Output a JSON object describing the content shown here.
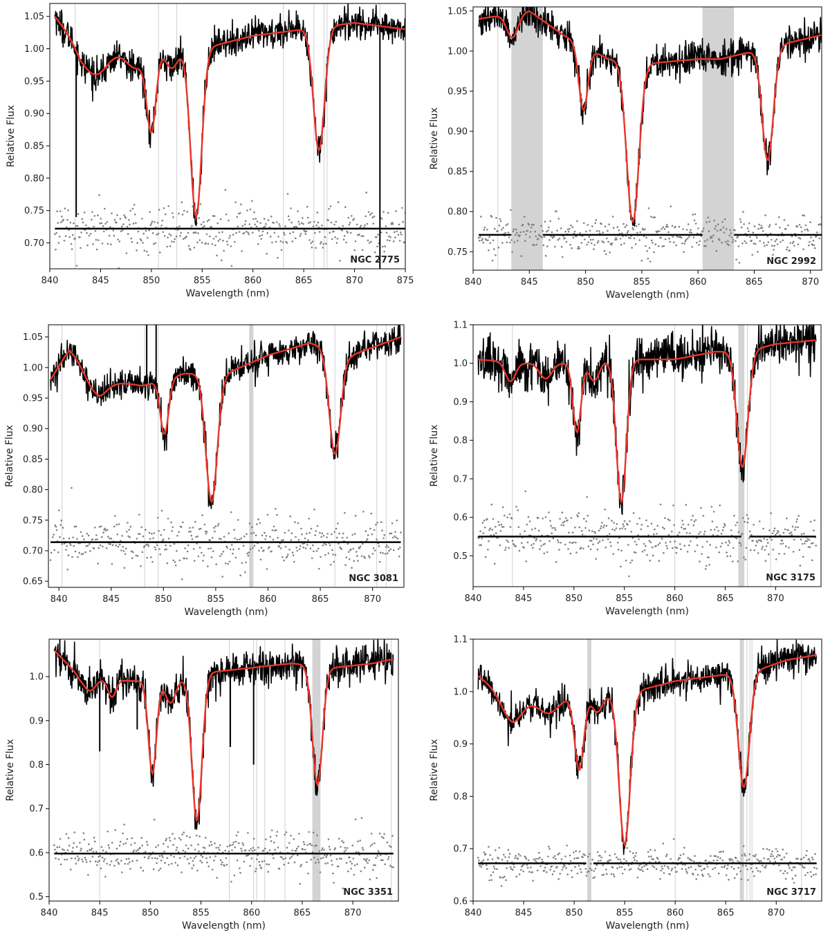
{
  "figure": {
    "ylabel": "Relative Flux",
    "xlabel": "Wavelength (nm)",
    "colors": {
      "observed": "#000000",
      "model": "#e8352a",
      "residuals": "#808080",
      "mask": "#d3d3d3",
      "baseline": "#000000"
    }
  },
  "chart_data": [
    {
      "type": "line",
      "name": "NGC 2775",
      "xlim": [
        840,
        875
      ],
      "ylim": [
        0.66,
        1.07
      ],
      "xticks": [
        840,
        845,
        850,
        855,
        860,
        865,
        870,
        875
      ],
      "yticks": [
        0.7,
        0.75,
        0.8,
        0.85,
        0.9,
        0.95,
        1.0,
        1.05
      ],
      "ytick_labels": [
        "0.70",
        "0.75",
        "0.80",
        "0.85",
        "0.90",
        "0.95",
        "1.00",
        "1.05"
      ],
      "xrange": [
        840.5,
        875
      ],
      "continuum": [
        [
          840.5,
          1.05
        ],
        [
          843,
          1.0
        ],
        [
          850,
          1.0
        ],
        [
          855,
          1.0
        ],
        [
          860,
          1.02
        ],
        [
          865,
          1.03
        ],
        [
          870,
          1.04
        ],
        [
          875,
          1.03
        ]
      ],
      "lines": [
        [
          850.0,
          0.12,
          0.45
        ],
        [
          854.4,
          0.26,
          0.55
        ],
        [
          866.5,
          0.19,
          0.55
        ],
        [
          844.5,
          0.04,
          1.2
        ],
        [
          848.5,
          0.03,
          1.0
        ],
        [
          852.0,
          0.03,
          0.6
        ]
      ],
      "noise": 0.012,
      "residual_level": 0.722,
      "residual_scatter": 0.02,
      "gaps": [],
      "masks": [],
      "grey_lines": [
        842.5,
        850.7,
        852.5,
        863.0,
        866.0,
        867.0,
        867.3,
        872.5
      ],
      "spikes": [
        [
          842.6,
          0.74
        ],
        [
          872.5,
          0.66
        ]
      ]
    },
    {
      "type": "line",
      "name": "NGC 2992",
      "xlim": [
        840,
        871
      ],
      "ylim": [
        0.727,
        1.055
      ],
      "xticks": [
        840,
        845,
        850,
        855,
        860,
        865,
        870
      ],
      "yticks": [
        0.75,
        0.8,
        0.85,
        0.9,
        0.95,
        1.0,
        1.05
      ],
      "ytick_labels": [
        "0.75",
        "0.80",
        "0.85",
        "0.90",
        "0.95",
        "1.00",
        "1.05"
      ],
      "xrange": [
        840.5,
        871
      ],
      "continuum": [
        [
          840.5,
          1.04
        ],
        [
          845,
          1.05
        ],
        [
          848,
          1.02
        ],
        [
          852,
          0.99
        ],
        [
          856,
          0.985
        ],
        [
          860,
          0.99
        ],
        [
          862,
          0.99
        ],
        [
          865,
          1.0
        ],
        [
          868,
          1.01
        ],
        [
          871,
          1.02
        ]
      ],
      "lines": [
        [
          849.8,
          0.08,
          0.4
        ],
        [
          854.2,
          0.2,
          0.55
        ],
        [
          866.2,
          0.14,
          0.5
        ],
        [
          843.5,
          0.03,
          0.5
        ]
      ],
      "noise": 0.01,
      "residual_level": 0.771,
      "residual_scatter": 0.012,
      "gaps": [
        [
          843.4,
          846.2
        ],
        [
          860.4,
          863.2
        ]
      ],
      "masks": [
        [
          843.4,
          846.2
        ],
        [
          860.4,
          863.2
        ]
      ],
      "grey_lines": [
        842.2
      ],
      "spikes": []
    },
    {
      "type": "line",
      "name": "NGC 3081",
      "xlim": [
        839,
        873
      ],
      "ylim": [
        0.64,
        1.07
      ],
      "xticks": [
        840,
        845,
        850,
        855,
        860,
        865,
        870
      ],
      "yticks": [
        0.65,
        0.7,
        0.75,
        0.8,
        0.85,
        0.9,
        0.95,
        1.0,
        1.05
      ],
      "ytick_labels": [
        "0.65",
        "0.70",
        "0.75",
        "0.80",
        "0.85",
        "0.90",
        "0.95",
        "1.00",
        "1.05"
      ],
      "xrange": [
        839.2,
        872.7
      ],
      "continuum": [
        [
          839.2,
          0.98
        ],
        [
          841,
          1.03
        ],
        [
          844,
          0.98
        ],
        [
          848,
          0.97
        ],
        [
          852,
          0.99
        ],
        [
          856,
          0.99
        ],
        [
          860,
          1.02
        ],
        [
          864,
          1.04
        ],
        [
          868,
          1.02
        ],
        [
          872.7,
          1.05
        ]
      ],
      "lines": [
        [
          850.1,
          0.09,
          0.4
        ],
        [
          854.6,
          0.21,
          0.55
        ],
        [
          866.4,
          0.17,
          0.55
        ],
        [
          843.5,
          0.03,
          1.0
        ]
      ],
      "noise": 0.012,
      "residual_level": 0.714,
      "residual_scatter": 0.02,
      "gaps": [],
      "masks": [
        [
          858.2,
          858.6
        ]
      ],
      "grey_lines": [
        840.3,
        848.2,
        849.5,
        858.3,
        866.4,
        870.4,
        871.3
      ],
      "spikes": [
        [
          849.3,
          1.07
        ],
        [
          848.4,
          1.07
        ]
      ]
    },
    {
      "type": "line",
      "name": "NGC 3175",
      "xlim": [
        840,
        874.5
      ],
      "ylim": [
        0.42,
        1.1
      ],
      "xticks": [
        840,
        845,
        850,
        855,
        860,
        865,
        870
      ],
      "yticks": [
        0.5,
        0.6,
        0.7,
        0.8,
        0.9,
        1.0,
        1.1
      ],
      "ytick_labels": [
        "0.5",
        "0.6",
        "0.7",
        "0.8",
        "0.9",
        "1.0",
        "1.1"
      ],
      "xrange": [
        840.5,
        874
      ],
      "continuum": [
        [
          840.5,
          1.01
        ],
        [
          845,
          1.0
        ],
        [
          850,
          1.0
        ],
        [
          855,
          1.01
        ],
        [
          860,
          1.01
        ],
        [
          864,
          1.03
        ],
        [
          867,
          1.03
        ],
        [
          870,
          1.05
        ],
        [
          874,
          1.06
        ]
      ],
      "lines": [
        [
          850.3,
          0.18,
          0.4
        ],
        [
          854.7,
          0.37,
          0.5
        ],
        [
          866.7,
          0.3,
          0.55
        ],
        [
          843.7,
          0.05,
          0.5
        ],
        [
          847.2,
          0.04,
          0.6
        ],
        [
          852.0,
          0.05,
          0.5
        ]
      ],
      "noise": 0.03,
      "residual_level": 0.55,
      "residual_scatter": 0.035,
      "gaps": [
        [
          866.6,
          867.4
        ]
      ],
      "masks": [
        [
          866.3,
          866.9
        ]
      ],
      "grey_lines": [
        843.9,
        860.0,
        867.2,
        869.5
      ],
      "spikes": []
    },
    {
      "type": "line",
      "name": "NGC 3351",
      "xlim": [
        840,
        874.5
      ],
      "ylim": [
        0.49,
        1.085
      ],
      "xticks": [
        840,
        845,
        850,
        855,
        860,
        865,
        870
      ],
      "yticks": [
        0.5,
        0.6,
        0.7,
        0.8,
        0.9,
        1.0
      ],
      "ytick_labels": [
        "0.5",
        "0.6",
        "0.7",
        "0.8",
        "0.9",
        "1.0"
      ],
      "xrange": [
        840.5,
        874
      ],
      "continuum": [
        [
          840.5,
          1.06
        ],
        [
          843,
          1.0
        ],
        [
          848,
          0.99
        ],
        [
          852,
          0.99
        ],
        [
          856,
          1.01
        ],
        [
          860,
          1.02
        ],
        [
          864,
          1.03
        ],
        [
          868,
          1.02
        ],
        [
          872,
          1.03
        ],
        [
          874,
          1.04
        ]
      ],
      "lines": [
        [
          850.2,
          0.21,
          0.4
        ],
        [
          854.6,
          0.33,
          0.5
        ],
        [
          866.5,
          0.27,
          0.5
        ],
        [
          846.2,
          0.04,
          0.4
        ],
        [
          852.0,
          0.05,
          0.5
        ],
        [
          844.0,
          0.03,
          0.6
        ]
      ],
      "noise": 0.02,
      "residual_level": 0.598,
      "residual_scatter": 0.025,
      "gaps": [],
      "masks": [
        [
          866.0,
          866.8
        ]
      ],
      "grey_lines": [
        845.0,
        857.8,
        860.2,
        860.5,
        861.3,
        863.3,
        873.8
      ],
      "spikes": [
        [
          845.0,
          0.83
        ],
        [
          857.9,
          0.84
        ],
        [
          860.2,
          0.8
        ],
        [
          848.7,
          0.88
        ]
      ]
    },
    {
      "type": "line",
      "name": "NGC 3717",
      "xlim": [
        840,
        874.5
      ],
      "ylim": [
        0.6,
        1.1
      ],
      "xticks": [
        840,
        845,
        850,
        855,
        860,
        865,
        870
      ],
      "yticks": [
        0.6,
        0.7,
        0.8,
        0.9,
        1.0,
        1.1
      ],
      "ytick_labels": [
        "0.6",
        "0.7",
        "0.8",
        "0.9",
        "1.0",
        "1.1"
      ],
      "xrange": [
        840.5,
        874
      ],
      "continuum": [
        [
          840.5,
          1.03
        ],
        [
          844,
          0.98
        ],
        [
          848,
          0.99
        ],
        [
          852,
          0.99
        ],
        [
          856,
          1.0
        ],
        [
          860,
          1.02
        ],
        [
          864,
          1.03
        ],
        [
          868,
          1.04
        ],
        [
          871,
          1.06
        ],
        [
          874,
          1.07
        ]
      ],
      "lines": [
        [
          850.5,
          0.14,
          0.45
        ],
        [
          855.0,
          0.29,
          0.55
        ],
        [
          866.8,
          0.22,
          0.55
        ],
        [
          843.8,
          0.04,
          1.0
        ],
        [
          847.5,
          0.03,
          1.0
        ],
        [
          852.3,
          0.03,
          0.5
        ]
      ],
      "noise": 0.015,
      "residual_level": 0.672,
      "residual_scatter": 0.015,
      "gaps": [
        [
          851.2,
          851.9
        ]
      ],
      "masks": [
        [
          851.3,
          851.7
        ],
        [
          866.4,
          866.8
        ]
      ],
      "grey_lines": [
        860.0,
        867.1,
        867.4,
        867.6,
        872.5
      ],
      "spikes": []
    }
  ]
}
